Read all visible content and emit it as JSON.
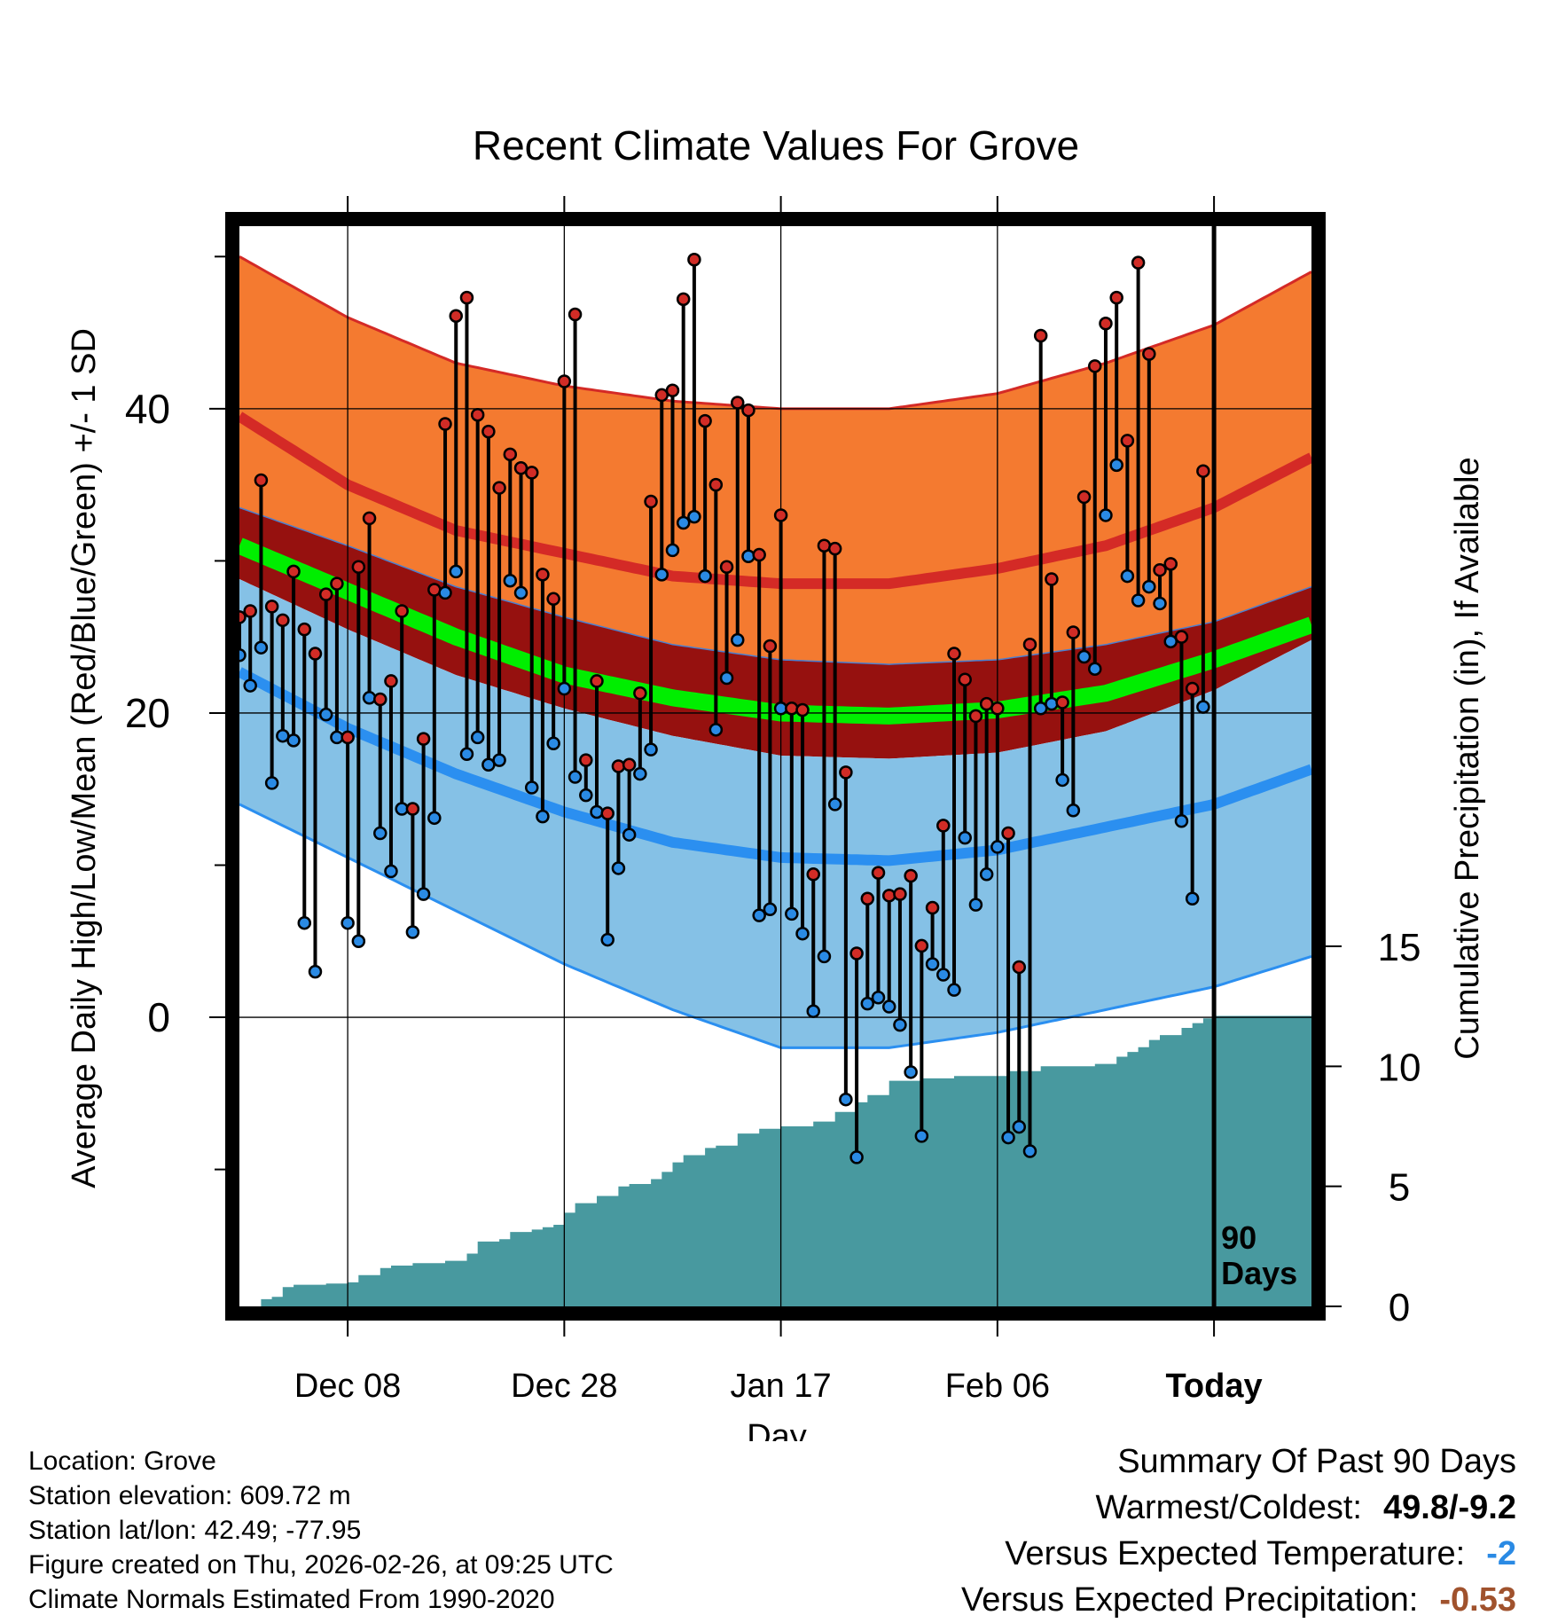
{
  "colors": {
    "record_band": "#f47a30",
    "normal_high": "#d42a26",
    "sd_band_dark": "#96110f",
    "mean": "#00ee00",
    "normal_low": "#2b8ff0",
    "cold_band": "#85c1e6",
    "precip": "#48999f",
    "high_dot": "#d12c26",
    "low_dot": "#2a8ae4",
    "temp_diff": "#2a8ae4",
    "precip_diff": "#a0522d"
  },
  "chart_data": {
    "type": "line",
    "title": "Recent Climate Values For Grove",
    "xlabel": "Day",
    "ylabel": "Average Daily High/Low/Mean (Red/Blue/Green) +/- 1 SD",
    "y2label": "Cumulative Precipitation (in), If Available",
    "x_ticks": [
      {
        "label": "Dec 08",
        "day": 10
      },
      {
        "label": "Dec 28",
        "day": 30
      },
      {
        "label": "Jan 17",
        "day": 50
      },
      {
        "label": "Feb 06",
        "day": 70
      },
      {
        "label": "Today",
        "day": 90
      }
    ],
    "x_range": [
      0,
      99
    ],
    "ylim": [
      -19,
      52
    ],
    "y_ticks": [
      0,
      20,
      40
    ],
    "y_minor_ticks": [
      -10,
      10,
      30,
      50
    ],
    "y2lim": [
      0,
      45
    ],
    "y2_ticks": [
      0,
      5,
      10,
      15
    ],
    "today_day": 90,
    "today_label": [
      "90",
      "Days"
    ],
    "bands": {
      "days": [
        0,
        10,
        20,
        30,
        40,
        50,
        60,
        70,
        80,
        90,
        99
      ],
      "high_plus_sd": [
        50,
        46,
        43,
        41.5,
        40.5,
        40,
        40,
        41,
        43,
        45.5,
        49
      ],
      "normal_high": [
        39.5,
        35,
        32,
        30.5,
        29,
        28.5,
        28.5,
        29.5,
        31,
        33.5,
        36.8
      ],
      "high_minus_sd": [
        33.5,
        31,
        28.3,
        26.3,
        24.5,
        23.5,
        23.2,
        23.5,
        24.5,
        26,
        28.3
      ],
      "mean": [
        31,
        28,
        25,
        22.5,
        21,
        20,
        19.8,
        20.2,
        21.3,
        23.5,
        25.8
      ],
      "low_plus_sd": [
        28.8,
        25.5,
        22.5,
        20.3,
        18.5,
        17.2,
        17,
        17.4,
        18.8,
        21.5,
        24.8
      ],
      "normal_low": [
        22.7,
        19,
        16,
        13.5,
        11.5,
        10.5,
        10.3,
        11,
        12.5,
        14,
        16.3
      ],
      "low_minus_sd": [
        14,
        10.5,
        7,
        3.5,
        0.5,
        -2,
        -2,
        -1,
        0.5,
        2,
        4
      ]
    },
    "daily": [
      {
        "day": 0,
        "high": 26.3,
        "low": 23.8
      },
      {
        "day": 1,
        "high": 26.7,
        "low": 21.8
      },
      {
        "day": 2,
        "high": 35.3,
        "low": 24.3
      },
      {
        "day": 3,
        "high": 27,
        "low": 15.4
      },
      {
        "day": 4,
        "high": 26.1,
        "low": 18.5
      },
      {
        "day": 5,
        "high": 29.3,
        "low": 18.2
      },
      {
        "day": 6,
        "high": 25.5,
        "low": 6.2
      },
      {
        "day": 7,
        "high": 23.9,
        "low": 3
      },
      {
        "day": 8,
        "high": 27.8,
        "low": 19.9
      },
      {
        "day": 9,
        "high": 28.5,
        "low": 18.4
      },
      {
        "day": 10,
        "high": 18.4,
        "low": 6.2
      },
      {
        "day": 11,
        "high": 29.6,
        "low": 5
      },
      {
        "day": 12,
        "high": 32.8,
        "low": 21
      },
      {
        "day": 13,
        "high": 20.9,
        "low": 12.1
      },
      {
        "day": 14,
        "high": 22.1,
        "low": 9.6
      },
      {
        "day": 15,
        "high": 26.7,
        "low": 13.7
      },
      {
        "day": 16,
        "high": 13.7,
        "low": 5.6
      },
      {
        "day": 17,
        "high": 18.3,
        "low": 8.1
      },
      {
        "day": 18,
        "high": 28.1,
        "low": 13.1
      },
      {
        "day": 19,
        "high": 39,
        "low": 27.9
      },
      {
        "day": 20,
        "high": 46.1,
        "low": 29.3
      },
      {
        "day": 21,
        "high": 47.3,
        "low": 17.3
      },
      {
        "day": 22,
        "high": 39.6,
        "low": 18.4
      },
      {
        "day": 23,
        "high": 38.5,
        "low": 16.6
      },
      {
        "day": 24,
        "high": 34.8,
        "low": 16.9
      },
      {
        "day": 25,
        "high": 37,
        "low": 28.7
      },
      {
        "day": 26,
        "high": 36.1,
        "low": 27.9
      },
      {
        "day": 27,
        "high": 35.8,
        "low": 15.1
      },
      {
        "day": 28,
        "high": 29.1,
        "low": 13.2
      },
      {
        "day": 29,
        "high": 27.5,
        "low": 18
      },
      {
        "day": 30,
        "high": 41.8,
        "low": 21.6
      },
      {
        "day": 31,
        "high": 46.2,
        "low": 15.8
      },
      {
        "day": 32,
        "high": 16.9,
        "low": 14.6
      },
      {
        "day": 33,
        "high": 22.1,
        "low": 13.5
      },
      {
        "day": 34,
        "high": 13.4,
        "low": 5.1
      },
      {
        "day": 35,
        "high": 16.5,
        "low": 9.8
      },
      {
        "day": 36,
        "high": 16.6,
        "low": 12
      },
      {
        "day": 37,
        "high": 21.3,
        "low": 16
      },
      {
        "day": 38,
        "high": 33.9,
        "low": 17.6
      },
      {
        "day": 39,
        "high": 40.9,
        "low": 29.1
      },
      {
        "day": 40,
        "high": 41.2,
        "low": 30.7
      },
      {
        "day": 41,
        "high": 47.2,
        "low": 32.5
      },
      {
        "day": 42,
        "high": 49.8,
        "low": 32.9
      },
      {
        "day": 43,
        "high": 39.2,
        "low": 29
      },
      {
        "day": 44,
        "high": 35,
        "low": 18.9
      },
      {
        "day": 45,
        "high": 29.6,
        "low": 22.3
      },
      {
        "day": 46,
        "high": 40.4,
        "low": 24.8
      },
      {
        "day": 47,
        "high": 39.9,
        "low": 30.3
      },
      {
        "day": 48,
        "high": 30.4,
        "low": 6.7
      },
      {
        "day": 49,
        "high": 24.4,
        "low": 7.1
      },
      {
        "day": 50,
        "high": 33,
        "low": 20.3
      },
      {
        "day": 51,
        "high": 20.3,
        "low": 6.8
      },
      {
        "day": 52,
        "high": 20.2,
        "low": 5.5
      },
      {
        "day": 53,
        "high": 9.4,
        "low": 0.4
      },
      {
        "day": 54,
        "high": 31,
        "low": 4
      },
      {
        "day": 55,
        "high": 30.8,
        "low": 14
      },
      {
        "day": 56,
        "high": 16.1,
        "low": -5.4
      },
      {
        "day": 57,
        "high": 4.2,
        "low": -9.2
      },
      {
        "day": 58,
        "high": 7.8,
        "low": 0.9
      },
      {
        "day": 59,
        "high": 9.5,
        "low": 1.3
      },
      {
        "day": 60,
        "high": 8,
        "low": 0.7
      },
      {
        "day": 61,
        "high": 8.1,
        "low": -0.5
      },
      {
        "day": 62,
        "high": 9.3,
        "low": -3.6
      },
      {
        "day": 63,
        "high": 4.7,
        "low": -7.8
      },
      {
        "day": 64,
        "high": 7.2,
        "low": 3.5
      },
      {
        "day": 65,
        "high": 12.6,
        "low": 2.8
      },
      {
        "day": 66,
        "high": 23.9,
        "low": 1.8
      },
      {
        "day": 67,
        "high": 22.2,
        "low": 11.8
      },
      {
        "day": 68,
        "high": 19.8,
        "low": 7.4
      },
      {
        "day": 69,
        "high": 20.6,
        "low": 9.4
      },
      {
        "day": 70,
        "high": 20.3,
        "low": 11.2
      },
      {
        "day": 71,
        "high": 12.1,
        "low": -7.9
      },
      {
        "day": 72,
        "high": 3.3,
        "low": -7.2
      },
      {
        "day": 73,
        "high": 24.5,
        "low": -8.8
      },
      {
        "day": 74,
        "high": 44.8,
        "low": 20.3
      },
      {
        "day": 75,
        "high": 28.8,
        "low": 20.6
      },
      {
        "day": 76,
        "high": 20.7,
        "low": 15.6
      },
      {
        "day": 77,
        "high": 25.3,
        "low": 13.6
      },
      {
        "day": 78,
        "high": 34.2,
        "low": 23.7
      },
      {
        "day": 79,
        "high": 42.8,
        "low": 22.9
      },
      {
        "day": 80,
        "high": 45.6,
        "low": 33
      },
      {
        "day": 81,
        "high": 47.3,
        "low": 36.3
      },
      {
        "day": 82,
        "high": 37.9,
        "low": 29
      },
      {
        "day": 83,
        "high": 49.6,
        "low": 27.4
      },
      {
        "day": 84,
        "high": 43.6,
        "low": 28.3
      },
      {
        "day": 85,
        "high": 29.4,
        "low": 27.2
      },
      {
        "day": 86,
        "high": 29.8,
        "low": 24.7
      },
      {
        "day": 87,
        "high": 25,
        "low": 12.9
      },
      {
        "day": 88,
        "high": 21.6,
        "low": 7.8
      },
      {
        "day": 89,
        "high": 35.9,
        "low": 20.4
      }
    ],
    "precip_cumulative": {
      "days": [
        0,
        1,
        2,
        3,
        4,
        5,
        8,
        10,
        11,
        13,
        14,
        16,
        19,
        21,
        22,
        24,
        25,
        27,
        28,
        29,
        30,
        31,
        33,
        35,
        36,
        38,
        39,
        40,
        41,
        43,
        44,
        46,
        48,
        50,
        53,
        55,
        57,
        58,
        60,
        63,
        66,
        71,
        74,
        79,
        81,
        82,
        83,
        84,
        85,
        87,
        88,
        89,
        90,
        99
      ],
      "values": [
        0,
        0,
        0.3,
        0.4,
        0.8,
        0.9,
        0.95,
        1.0,
        1.3,
        1.6,
        1.7,
        1.8,
        1.9,
        2.2,
        2.7,
        2.8,
        3.1,
        3.2,
        3.3,
        3.4,
        3.9,
        4.3,
        4.6,
        5.0,
        5.1,
        5.3,
        5.6,
        6.0,
        6.3,
        6.6,
        6.7,
        7.2,
        7.4,
        7.5,
        7.7,
        8.1,
        8.5,
        8.8,
        9.4,
        9.5,
        9.6,
        9.8,
        10.0,
        10.1,
        10.4,
        10.6,
        10.8,
        11.1,
        11.3,
        11.6,
        11.8,
        12.0,
        12.1,
        12.1
      ]
    }
  },
  "meta": {
    "location": "Location: Grove",
    "elevation": "Station elevation: 609.72 m",
    "latlon": "Station lat/lon: 42.49; -77.95",
    "created": "Figure created on Thu, 2026-02-26, at 09:25 UTC",
    "normals": "Climate Normals Estimated From 1990-2020"
  },
  "summary": {
    "heading": "Summary Of Past 90 Days",
    "warmest_coldest_label": "Warmest/Coldest:",
    "warmest_coldest_value": "49.8/-9.2",
    "temp_label": "Versus Expected Temperature:",
    "temp_value": "-2",
    "precip_label": "Versus Expected Precipitation:",
    "precip_value": "-0.53"
  }
}
